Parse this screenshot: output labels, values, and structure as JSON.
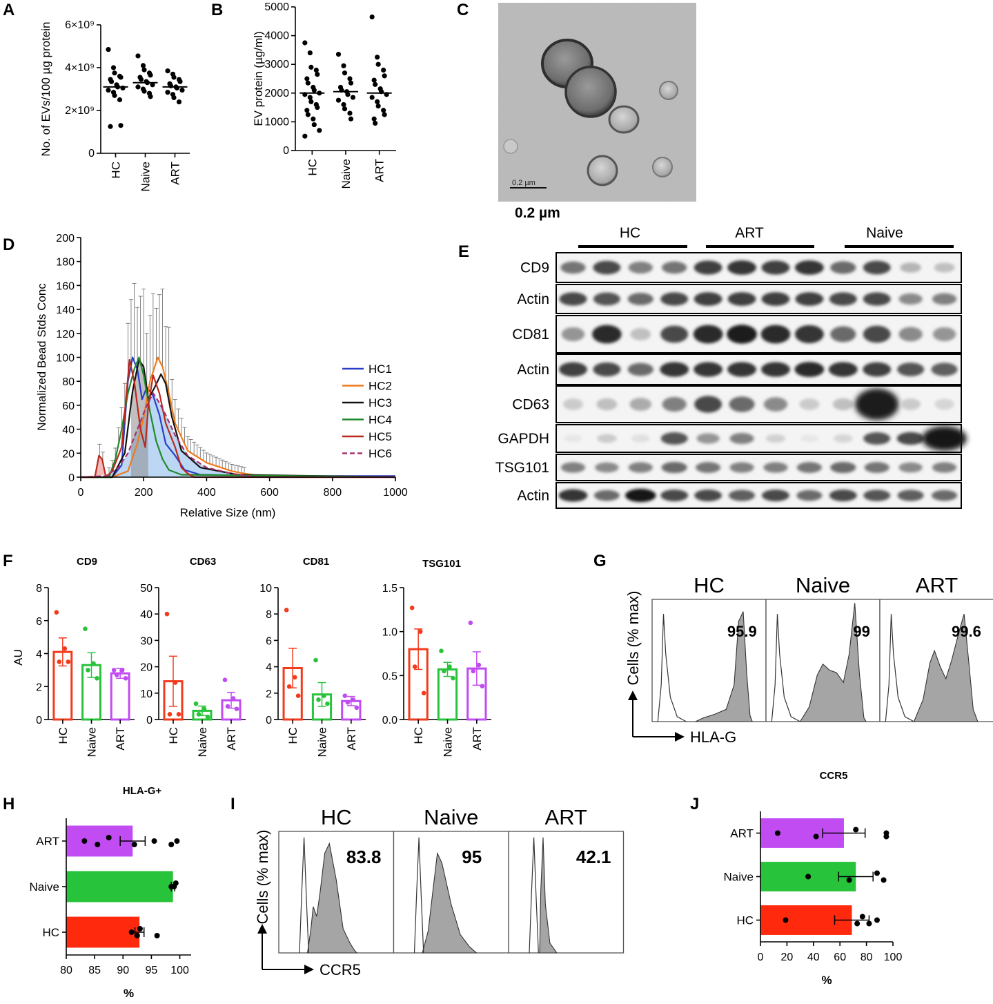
{
  "panels": {
    "A": {
      "label": "A",
      "chart_data": {
        "type": "scatter",
        "ylabel": "No. of EVs/100 µg protein",
        "categories": [
          "HC",
          "Naive",
          "ART"
        ],
        "yticks": [
          "0",
          "2×10⁹",
          "4×10⁹",
          "6×10⁹"
        ],
        "ylim": [
          0,
          6000000000
        ],
        "means": [
          3100000000,
          3300000000,
          3100000000
        ],
        "values": [
          [
            4850000000,
            4000000000,
            3750000000,
            3600000000,
            3550000000,
            3450000000,
            3350000000,
            3200000000,
            3100000000,
            3050000000,
            2950000000,
            2850000000,
            2700000000,
            2500000000,
            1300000000,
            1250000000
          ],
          [
            4550000000,
            4100000000,
            3900000000,
            3750000000,
            3650000000,
            3550000000,
            3450000000,
            3350000000,
            3300000000,
            3200000000,
            3100000000,
            3000000000,
            2900000000,
            2800000000,
            2650000000
          ],
          [
            3850000000,
            3700000000,
            3550000000,
            3450000000,
            3350000000,
            3250000000,
            3150000000,
            3100000000,
            3050000000,
            2950000000,
            2850000000,
            2750000000,
            2600000000,
            2400000000
          ]
        ]
      }
    },
    "B": {
      "label": "B",
      "chart_data": {
        "type": "scatter",
        "ylabel": "EV protein (µg/ml)",
        "categories": [
          "HC",
          "Naive",
          "ART"
        ],
        "yticks": [
          "0",
          "1000",
          "2000",
          "3000",
          "4000",
          "5000"
        ],
        "ylim": [
          0,
          5000
        ],
        "means": [
          2000,
          2050,
          2000
        ],
        "values": [
          [
            3750,
            3400,
            2900,
            2800,
            2650,
            2500,
            2350,
            2200,
            2100,
            2000,
            1950,
            1850,
            1700,
            1600,
            1500,
            1400,
            1250,
            1100,
            900,
            700,
            500
          ],
          [
            3350,
            2950,
            2700,
            2500,
            2350,
            2200,
            2100,
            2050,
            1950,
            1850,
            1750,
            1600,
            1450,
            1300,
            1100
          ],
          [
            4650,
            3250,
            3000,
            2800,
            2600,
            2450,
            2300,
            2150,
            2050,
            1950,
            1850,
            1700,
            1550,
            1400,
            1250,
            1100,
            950
          ]
        ]
      }
    },
    "C": {
      "label": "C",
      "scale_text": "0.2 µm",
      "scalebar_inset": "0.2 µm"
    },
    "D": {
      "label": "D",
      "chart_data": {
        "type": "line",
        "xlabel": "Relative Size (nm)",
        "ylabel": "Normalized Bead Stds Conc",
        "xlim": [
          0,
          1000
        ],
        "ylim": [
          0,
          200
        ],
        "xticks": [
          "0",
          "200",
          "400",
          "600",
          "800",
          "1000"
        ],
        "yticks": [
          "0",
          "20",
          "40",
          "60",
          "80",
          "100",
          "120",
          "140",
          "160",
          "180",
          "200"
        ],
        "series": [
          {
            "name": "HC1",
            "color": "#2b3ec7",
            "x": [
              0,
              100,
              130,
              150,
              165,
              180,
              195,
              210,
              230,
              250,
              270,
              300,
              330,
              380,
              600,
              1000
            ],
            "y": [
              0,
              0,
              10,
              80,
              100,
              90,
              65,
              75,
              68,
              52,
              28,
              18,
              6,
              2,
              1,
              1
            ]
          },
          {
            "name": "HC2",
            "color": "#f07a19",
            "x": [
              0,
              100,
              150,
              180,
              200,
              220,
              245,
              260,
              280,
              300,
              340,
              400,
              480,
              520,
              600,
              1000
            ],
            "y": [
              0,
              0,
              5,
              28,
              50,
              80,
              100,
              92,
              70,
              45,
              22,
              12,
              5,
              3,
              0,
              0
            ]
          },
          {
            "name": "HC3",
            "color": "#111111",
            "x": [
              0,
              100,
              140,
              165,
              185,
              200,
              215,
              235,
              255,
              270,
              290,
              320,
              380,
              500,
              1000
            ],
            "y": [
              0,
              0,
              20,
              72,
              98,
              92,
              65,
              75,
              86,
              78,
              50,
              22,
              8,
              2,
              0
            ]
          },
          {
            "name": "HC4",
            "color": "#1e8a2a",
            "x": [
              0,
              90,
              110,
              130,
              150,
              170,
              185,
              200,
              220,
              240,
              260,
              280,
              320,
              1000
            ],
            "y": [
              0,
              0,
              15,
              40,
              70,
              90,
              100,
              85,
              55,
              30,
              15,
              6,
              2,
              0
            ]
          },
          {
            "name": "HC5",
            "color": "#b8281c",
            "x": [
              0,
              45,
              58,
              68,
              80,
              100,
              130,
              155,
              170,
              190,
              205,
              215,
              230,
              250,
              270,
              300,
              320,
              340,
              360,
              1000
            ],
            "y": [
              0,
              0,
              18,
              15,
              0,
              5,
              25,
              98,
              80,
              40,
              25,
              60,
              85,
              70,
              45,
              25,
              8,
              3,
              0,
              0
            ]
          },
          {
            "name": "HC6",
            "color": "#a8306e",
            "dashed": true,
            "x": [
              0,
              80,
              120,
              150,
              180,
              210,
              230,
              250,
              270,
              300,
              340,
              400,
              480,
              560,
              1000
            ],
            "y": [
              0,
              1,
              8,
              20,
              40,
              60,
              70,
              62,
              52,
              35,
              18,
              8,
              3,
              0,
              0
            ]
          }
        ]
      }
    },
    "E": {
      "label": "E",
      "groups": [
        "HC",
        "ART",
        "Naive"
      ],
      "rows": [
        {
          "label": "CD9",
          "intensities": [
            0.55,
            0.75,
            0.5,
            0.55,
            0.8,
            0.85,
            0.8,
            0.85,
            0.6,
            0.75,
            0.25,
            0.2
          ]
        },
        {
          "label": "Actin",
          "intensities": [
            0.75,
            0.7,
            0.6,
            0.75,
            0.8,
            0.8,
            0.8,
            0.8,
            0.75,
            0.75,
            0.45,
            0.5
          ]
        },
        {
          "label": "CD81",
          "intensities": [
            0.4,
            0.9,
            0.2,
            0.75,
            0.9,
            0.95,
            0.9,
            0.85,
            0.6,
            0.75,
            0.45,
            0.4
          ]
        },
        {
          "label": "Actin",
          "intensities": [
            0.8,
            0.75,
            0.6,
            0.85,
            0.85,
            0.85,
            0.85,
            0.9,
            0.85,
            0.8,
            0.7,
            0.65
          ]
        },
        {
          "label": "CD63",
          "intensities": [
            0.15,
            0.2,
            0.3,
            0.5,
            0.75,
            0.6,
            0.45,
            0.15,
            0.2,
            0.95,
            0.15,
            0.1
          ]
        },
        {
          "label": "GAPDH",
          "intensities": [
            0.02,
            0.15,
            0.05,
            0.7,
            0.4,
            0.5,
            0.12,
            0.02,
            0.1,
            0.7,
            0.75,
            1.0
          ]
        },
        {
          "label": "TSG101",
          "intensities": [
            0.5,
            0.45,
            0.5,
            0.6,
            0.55,
            0.5,
            0.5,
            0.55,
            0.6,
            0.55,
            0.45,
            0.5
          ]
        },
        {
          "label": "Actin",
          "intensities": [
            0.85,
            0.6,
            1.0,
            0.75,
            0.75,
            0.65,
            0.75,
            0.6,
            0.75,
            0.7,
            0.65,
            0.6
          ]
        }
      ]
    },
    "F": {
      "label": "F",
      "ylabel": "AU",
      "categories": [
        "HC",
        "Naive",
        "ART"
      ],
      "colors": [
        "#f23a1d",
        "#27c33a",
        "#c04cf2"
      ],
      "charts": [
        {
          "title": "CD9",
          "type": "bar",
          "ylim": [
            0,
            8
          ],
          "yticks": [
            "0",
            "2",
            "4",
            "6",
            "8"
          ],
          "means": [
            4.1,
            3.3,
            2.8
          ],
          "sem": [
            0.85,
            0.75,
            0.3
          ],
          "points": [
            [
              6.5,
              4.3,
              3.5,
              3.5
            ],
            [
              5.5,
              3.4,
              3.0,
              2.5
            ],
            [
              3.0,
              3.0,
              2.7,
              2.5
            ]
          ]
        },
        {
          "title": "CD63",
          "type": "bar",
          "ylim": [
            0,
            50
          ],
          "yticks": [
            "0",
            "10",
            "20",
            "30",
            "40",
            "50"
          ],
          "means": [
            14.5,
            3.3,
            7.3
          ],
          "sem": [
            9.5,
            1.8,
            3.0
          ],
          "points": [
            [
              40,
              14,
              2,
              2
            ],
            [
              6,
              4,
              2,
              1
            ],
            [
              15,
              8,
              5,
              4
            ]
          ]
        },
        {
          "title": "CD81",
          "type": "bar",
          "ylim": [
            0,
            10
          ],
          "yticks": [
            "0",
            "2",
            "4",
            "6",
            "8",
            "10"
          ],
          "means": [
            3.9,
            1.9,
            1.4
          ],
          "sem": [
            1.5,
            0.9,
            0.35
          ],
          "points": [
            [
              8.3,
              3.2,
              2.5,
              1.8
            ],
            [
              4.5,
              1.8,
              1.5,
              1.2
            ],
            [
              1.8,
              1.5,
              1.3,
              0.9
            ]
          ]
        },
        {
          "title": "TSG101",
          "type": "bar",
          "ylim": [
            0,
            1.5
          ],
          "yticks": [
            "0.0",
            "0.5",
            "1.0",
            "1.5"
          ],
          "means": [
            0.8,
            0.57,
            0.58
          ],
          "sem": [
            0.23,
            0.08,
            0.19
          ],
          "points": [
            [
              1.27,
              1.0,
              0.6,
              0.3
            ],
            [
              0.78,
              0.6,
              0.55,
              0.47
            ],
            [
              1.1,
              0.62,
              0.55,
              0.38
            ]
          ]
        }
      ]
    },
    "G": {
      "label": "G",
      "ylabel": "Cells (% max)",
      "xlabel": "HLA-G",
      "panels": [
        {
          "title": "HC",
          "value": "95.9"
        },
        {
          "title": "Naive",
          "value": "99"
        },
        {
          "title": "ART",
          "value": "99.6"
        }
      ]
    },
    "H": {
      "label": "H",
      "chart_data": {
        "type": "bar",
        "orientation": "horizontal",
        "title": "HLA-G+",
        "xlabel": "%",
        "categories": [
          "ART",
          "Naive",
          "HC"
        ],
        "colors": [
          "#c04cf2",
          "#27c33a",
          "#ff2a0d"
        ],
        "xlim": [
          80,
          102
        ],
        "xticks": [
          "80",
          "85",
          "90",
          "95",
          "100"
        ],
        "values": [
          91.7,
          98.8,
          92.9
        ],
        "sem": [
          2.2,
          0.3,
          0.8
        ],
        "points": [
          [
            83.2,
            85.5,
            87.5,
            92.0,
            95.5,
            98.5,
            99.5
          ],
          [
            98.5,
            99.0,
            99.3
          ],
          [
            91.5,
            92.5,
            93.0,
            96.0
          ]
        ]
      }
    },
    "I": {
      "label": "I",
      "ylabel": "Cells (% max)",
      "xlabel": "CCR5",
      "panels": [
        {
          "title": "HC",
          "value": "83.8"
        },
        {
          "title": "Naive",
          "value": "95"
        },
        {
          "title": "ART",
          "value": "42.1"
        }
      ]
    },
    "J": {
      "label": "J",
      "chart_data": {
        "type": "bar",
        "orientation": "horizontal",
        "title": "CCR5",
        "xlabel": "%",
        "categories": [
          "ART",
          "Naive",
          "HC"
        ],
        "colors": [
          "#c04cf2",
          "#27c33a",
          "#ff2a0d"
        ],
        "xlim": [
          0,
          100
        ],
        "xticks": [
          "0",
          "20",
          "40",
          "60",
          "80",
          "100"
        ],
        "values": [
          63,
          72,
          69
        ],
        "sem": [
          16,
          13,
          13
        ],
        "points": [
          [
            13,
            42,
            72,
            95,
            95
          ],
          [
            36,
            67,
            88,
            93
          ],
          [
            19,
            73,
            77,
            82,
            88
          ]
        ]
      }
    }
  }
}
